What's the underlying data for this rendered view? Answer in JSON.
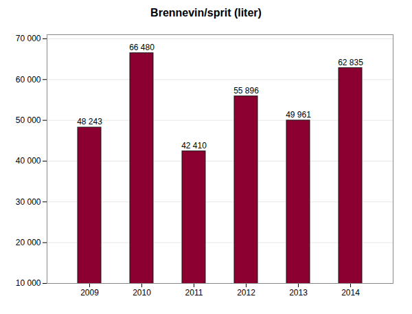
{
  "chart_data": {
    "type": "bar",
    "title": "Brennevin/sprit (liter)",
    "categories": [
      "2009",
      "2010",
      "2011",
      "2012",
      "2013",
      "2014"
    ],
    "values": [
      48243,
      66480,
      42410,
      55896,
      49961,
      62835
    ],
    "value_labels": [
      "48 243",
      "66 480",
      "42 410",
      "55 896",
      "49 961",
      "62 835"
    ],
    "color": "#8B0030",
    "ylim": [
      10000,
      71000
    ],
    "yticks": [
      {
        "value": 10000,
        "label": "10 000"
      },
      {
        "value": 20000,
        "label": "20 000"
      },
      {
        "value": 30000,
        "label": "30 000"
      },
      {
        "value": 40000,
        "label": "40 000"
      },
      {
        "value": 50000,
        "label": "50 000"
      },
      {
        "value": 60000,
        "label": "60 000"
      },
      {
        "value": 70000,
        "label": "70 000"
      }
    ],
    "grid": true,
    "data_labels": true
  }
}
